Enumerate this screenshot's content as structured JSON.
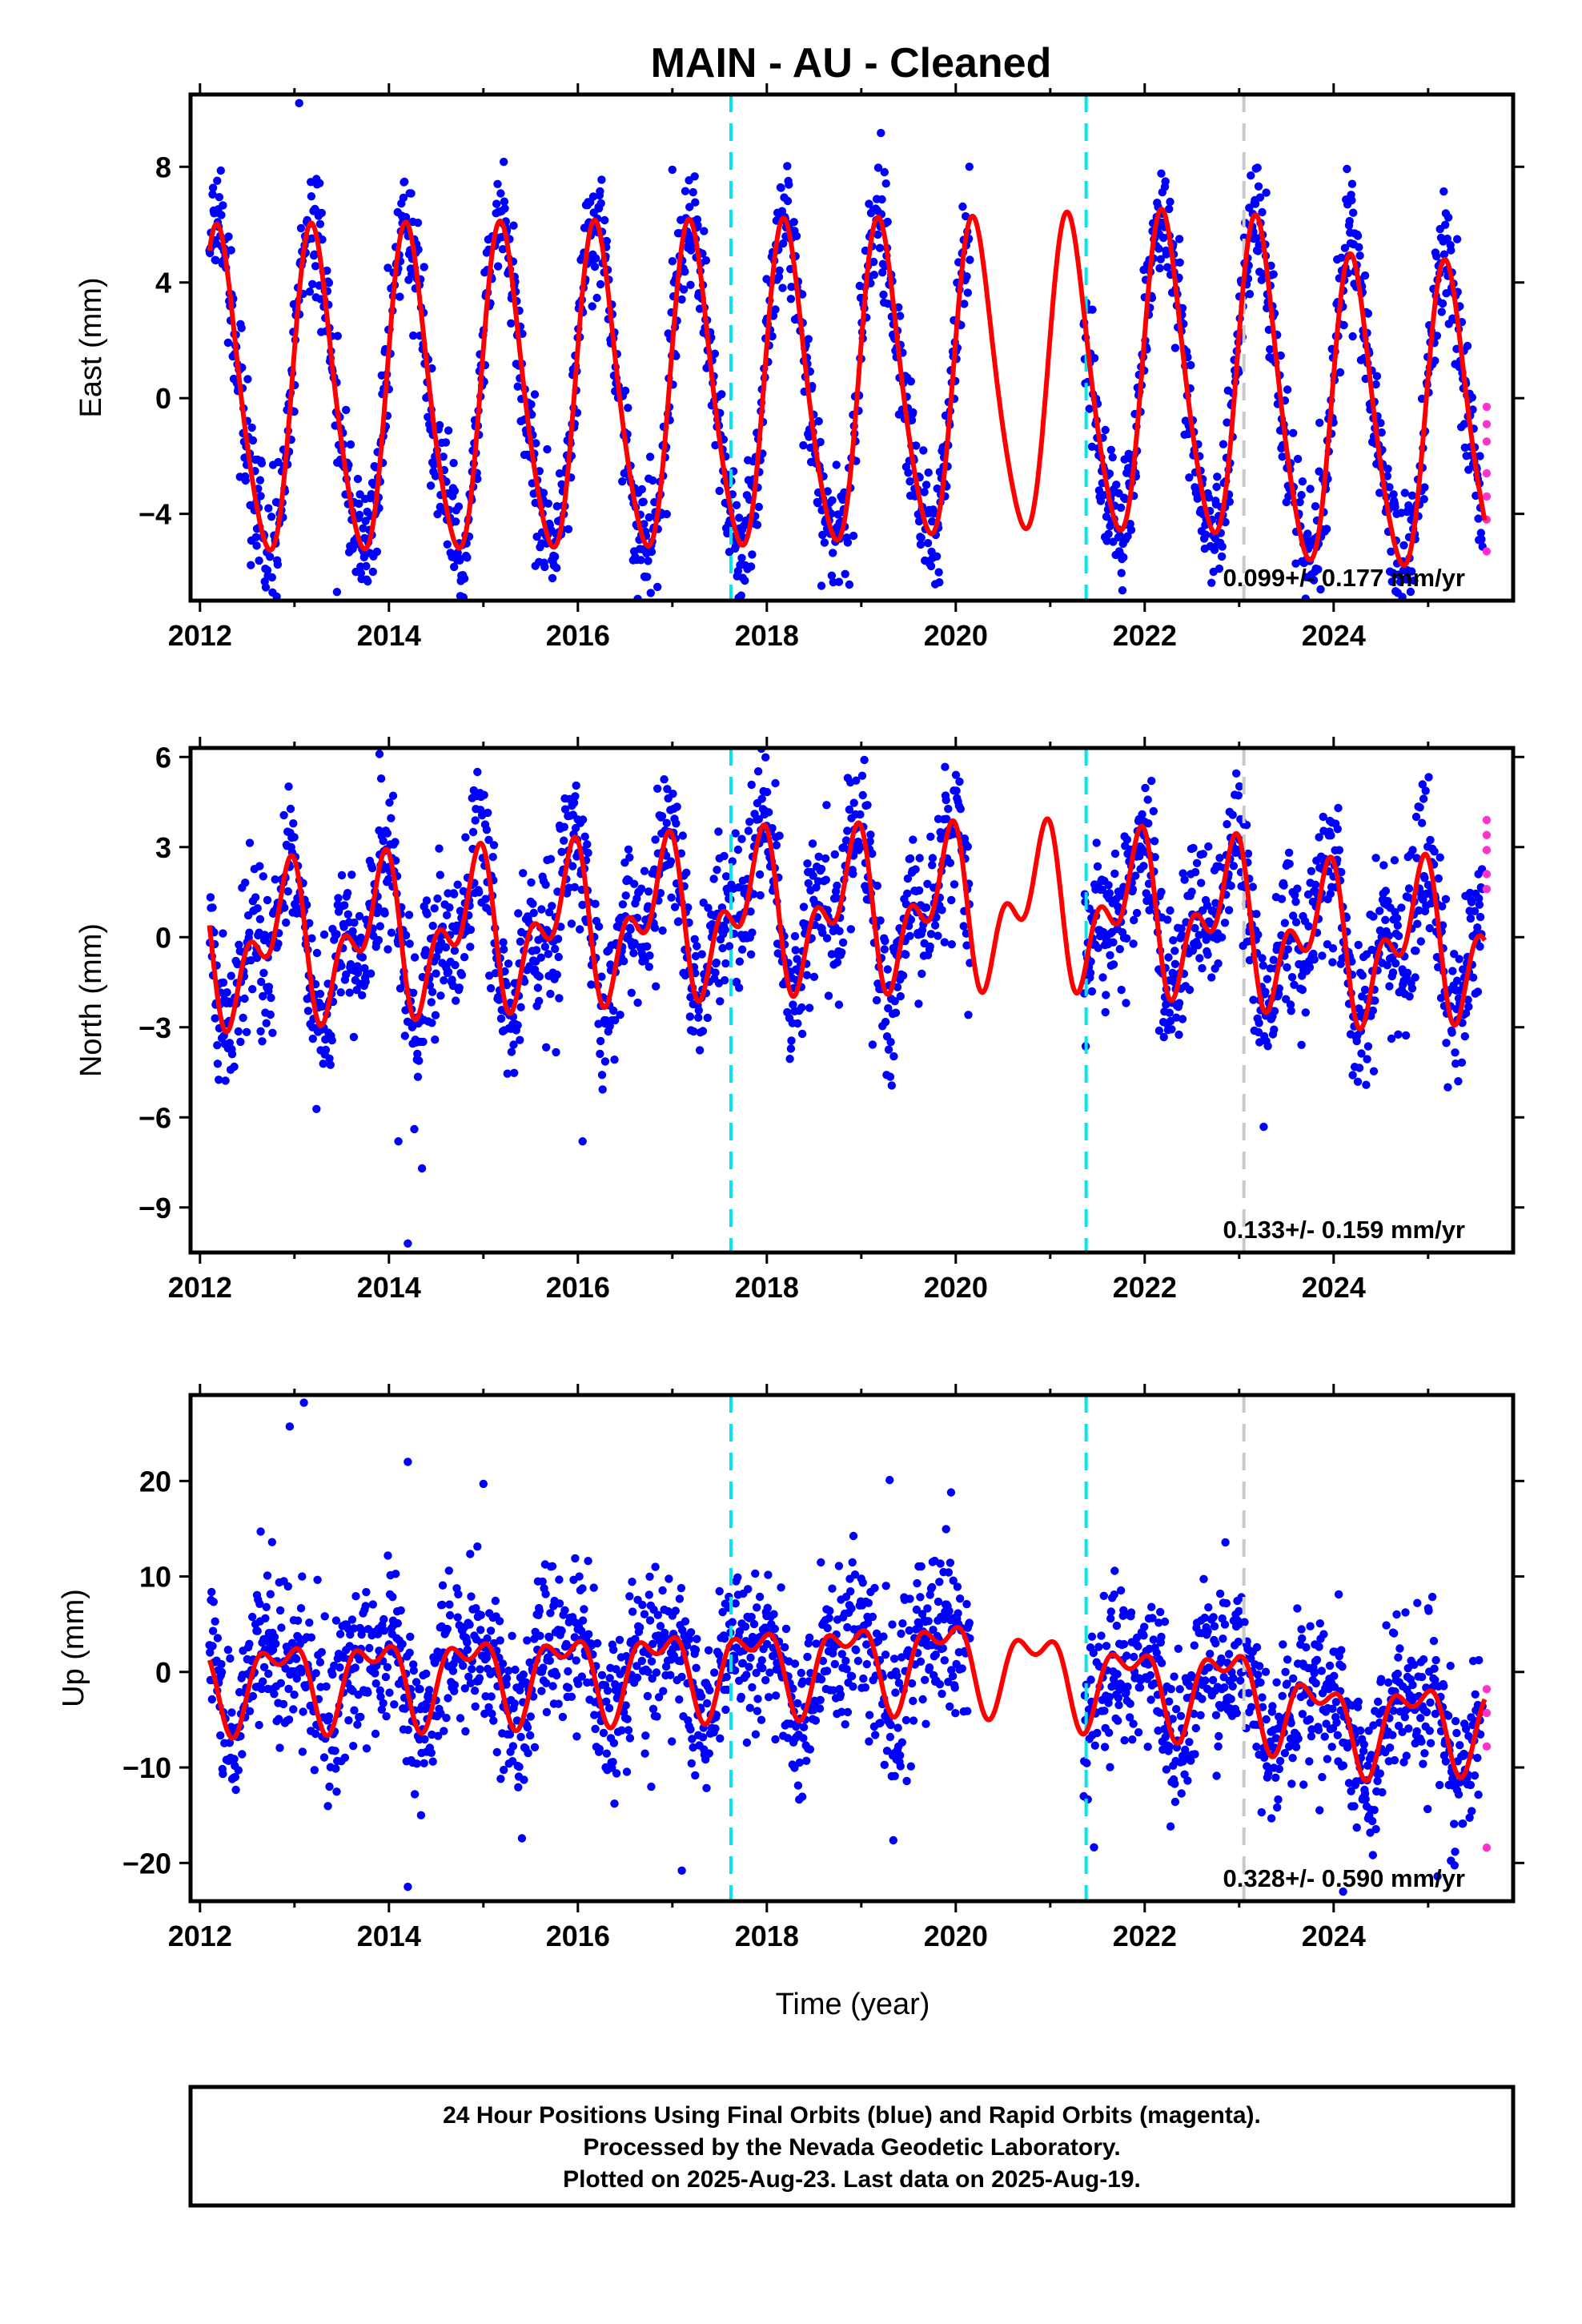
{
  "figure": {
    "title": "MAIN  - AU - Cleaned",
    "xlabel": "Time (year)",
    "footer": [
      "24 Hour Positions Using Final Orbits (blue) and Rapid Orbits (magenta).",
      "Processed by the Nevada Geodetic Laboratory.",
      "Plotted on 2025-Aug-23. Last data on 2025-Aug-19."
    ]
  },
  "colors": {
    "final_orbits": "#0000ff",
    "rapid_orbits": "#ff33cc",
    "model": "#ff0000",
    "equipment_change": "#00e5ee",
    "other_event": "#c8c8c8",
    "frame": "#000000"
  },
  "chart_data": [
    {
      "type": "scatter",
      "component": "east",
      "ylabel": "East (mm)",
      "rate_text": "0.099+/- 0.177 mm/yr",
      "xlim": [
        2011.9,
        2025.9
      ],
      "ylim": [
        -7,
        10.5
      ],
      "xticks": [
        2012,
        2014,
        2016,
        2018,
        2020,
        2022,
        2024
      ],
      "yticks": [
        8,
        4,
        0,
        -4
      ],
      "ytick_labels": [
        "8",
        "4",
        "0",
        "−4"
      ],
      "grid": false,
      "vlines": [
        {
          "x": 2017.62,
          "kind": "equipment_change"
        },
        {
          "x": 2021.38,
          "kind": "equipment_change"
        },
        {
          "x": 2023.05,
          "kind": "other_event"
        }
      ],
      "model": {
        "offset": 0.0,
        "amp1": 2.3,
        "ph1": 0.3,
        "amp2": 0.3,
        "ph2": 0.0,
        "amp_trend": 0.15,
        "env": [
          [
            2012.1,
            2.4
          ],
          [
            2018.0,
            2.4
          ],
          [
            2020.5,
            2.3
          ],
          [
            2023.0,
            2.4
          ],
          [
            2025.6,
            2.2
          ]
        ],
        "base": [
          [
            2012.1,
            0.0
          ],
          [
            2018.0,
            0.2
          ],
          [
            2021.0,
            0.6
          ],
          [
            2023.0,
            0.6
          ],
          [
            2024.0,
            -0.8
          ],
          [
            2025.6,
            -0.8
          ]
        ]
      },
      "scatter": {
        "noise": 1.1,
        "spread": 1.0
      },
      "rapid_points": [
        [
          2025.62,
          -0.3
        ],
        [
          2025.62,
          -0.9
        ],
        [
          2025.62,
          -1.5
        ],
        [
          2025.62,
          -2.6
        ],
        [
          2025.62,
          -3.4
        ],
        [
          2025.62,
          -4.2
        ],
        [
          2025.62,
          -5.3
        ]
      ],
      "outliers": [
        [
          2013.05,
          10.2
        ],
        [
          2013.45,
          -6.7
        ],
        [
          2015.55,
          -5.8
        ],
        [
          2012.6,
          -5.1
        ],
        [
          2017.0,
          7.9
        ]
      ],
      "gaps": [
        [
          2020.15,
          2021.35
        ]
      ]
    },
    {
      "type": "scatter",
      "component": "north",
      "ylabel": "North (mm)",
      "rate_text": "0.133+/- 0.159 mm/yr",
      "xlim": [
        2011.9,
        2025.9
      ],
      "ylim": [
        -10.5,
        6.3
      ],
      "xticks": [
        2012,
        2014,
        2016,
        2018,
        2020,
        2022,
        2024
      ],
      "yticks": [
        6,
        3,
        0,
        -3,
        -6,
        -9
      ],
      "ytick_labels": [
        "6",
        "3",
        "0",
        "−3",
        "−6",
        "−9"
      ],
      "grid": false,
      "vlines": [
        {
          "x": 2017.62,
          "kind": "equipment_change"
        },
        {
          "x": 2021.38,
          "kind": "equipment_change"
        },
        {
          "x": 2023.05,
          "kind": "other_event"
        }
      ],
      "model": {
        "offset": -0.4,
        "amp1": 1.9,
        "ph1": 2.3,
        "amp2": 1.4,
        "ph2": 1.6,
        "amp_trend": 0.0,
        "env": [
          [
            2012.1,
            1.0
          ],
          [
            2020.0,
            1.0
          ],
          [
            2025.6,
            1.0
          ]
        ],
        "base": [
          [
            2012.1,
            -0.4
          ],
          [
            2018.0,
            0.8
          ],
          [
            2021.0,
            1.0
          ],
          [
            2023.0,
            0.5
          ],
          [
            2024.0,
            -0.3
          ],
          [
            2025.6,
            -0.1
          ]
        ]
      },
      "scatter": {
        "noise": 1.3,
        "spread": 1.0
      },
      "rapid_points": [
        [
          2025.62,
          3.9
        ],
        [
          2025.62,
          3.4
        ],
        [
          2025.62,
          2.9
        ],
        [
          2025.62,
          2.1
        ],
        [
          2025.62,
          1.6
        ]
      ],
      "outliers": [
        [
          2013.9,
          6.1
        ],
        [
          2014.2,
          -10.2
        ],
        [
          2014.35,
          -7.7
        ],
        [
          2014.1,
          -6.8
        ],
        [
          2016.05,
          -6.8
        ]
      ],
      "gaps": [
        [
          2020.15,
          2021.35
        ]
      ]
    },
    {
      "type": "scatter",
      "component": "up",
      "ylabel": "Up (mm)",
      "rate_text": "0.328+/- 0.590 mm/yr",
      "xlim": [
        2011.9,
        2025.9
      ],
      "ylim": [
        -24,
        29
      ],
      "xticks": [
        2012,
        2014,
        2016,
        2018,
        2020,
        2022,
        2024
      ],
      "yticks": [
        20,
        10,
        0,
        -10,
        -20
      ],
      "ytick_labels": [
        "20",
        "10",
        "0",
        "−10",
        "−20"
      ],
      "grid": false,
      "vlines": [
        {
          "x": 2017.62,
          "kind": "equipment_change"
        },
        {
          "x": 2021.38,
          "kind": "equipment_change"
        },
        {
          "x": 2023.05,
          "kind": "other_event"
        }
      ],
      "model": {
        "offset": 0.0,
        "amp1": 3.8,
        "ph1": 2.5,
        "amp2": 2.2,
        "ph2": 0.4,
        "amp_trend": 0.0,
        "env": [
          [
            2012.1,
            1.0
          ],
          [
            2025.6,
            1.0
          ]
        ],
        "base": [
          [
            2012.1,
            -1.0
          ],
          [
            2016.0,
            0.0
          ],
          [
            2020.0,
            1.5
          ],
          [
            2022.0,
            -1.5
          ],
          [
            2023.0,
            -1.5
          ],
          [
            2024.0,
            -5.5
          ],
          [
            2025.6,
            -5.0
          ]
        ]
      },
      "scatter": {
        "noise": 4.2,
        "spread": 1.0
      },
      "rapid_points": [
        [
          2025.62,
          -1.8
        ],
        [
          2025.62,
          -4.3
        ],
        [
          2025.62,
          -7.8
        ],
        [
          2025.62,
          -18.4
        ]
      ],
      "outliers": [
        [
          2013.1,
          28.2
        ],
        [
          2012.95,
          25.7
        ],
        [
          2014.2,
          22.0
        ],
        [
          2014.2,
          -22.5
        ],
        [
          2024.1,
          -23.0
        ],
        [
          2025.1,
          -21.4
        ],
        [
          2015.0,
          19.7
        ],
        [
          2019.3,
          20.1
        ],
        [
          2017.1,
          -20.8
        ],
        [
          2019.95,
          18.8
        ]
      ],
      "gaps": [
        [
          2020.15,
          2021.35
        ]
      ]
    }
  ]
}
